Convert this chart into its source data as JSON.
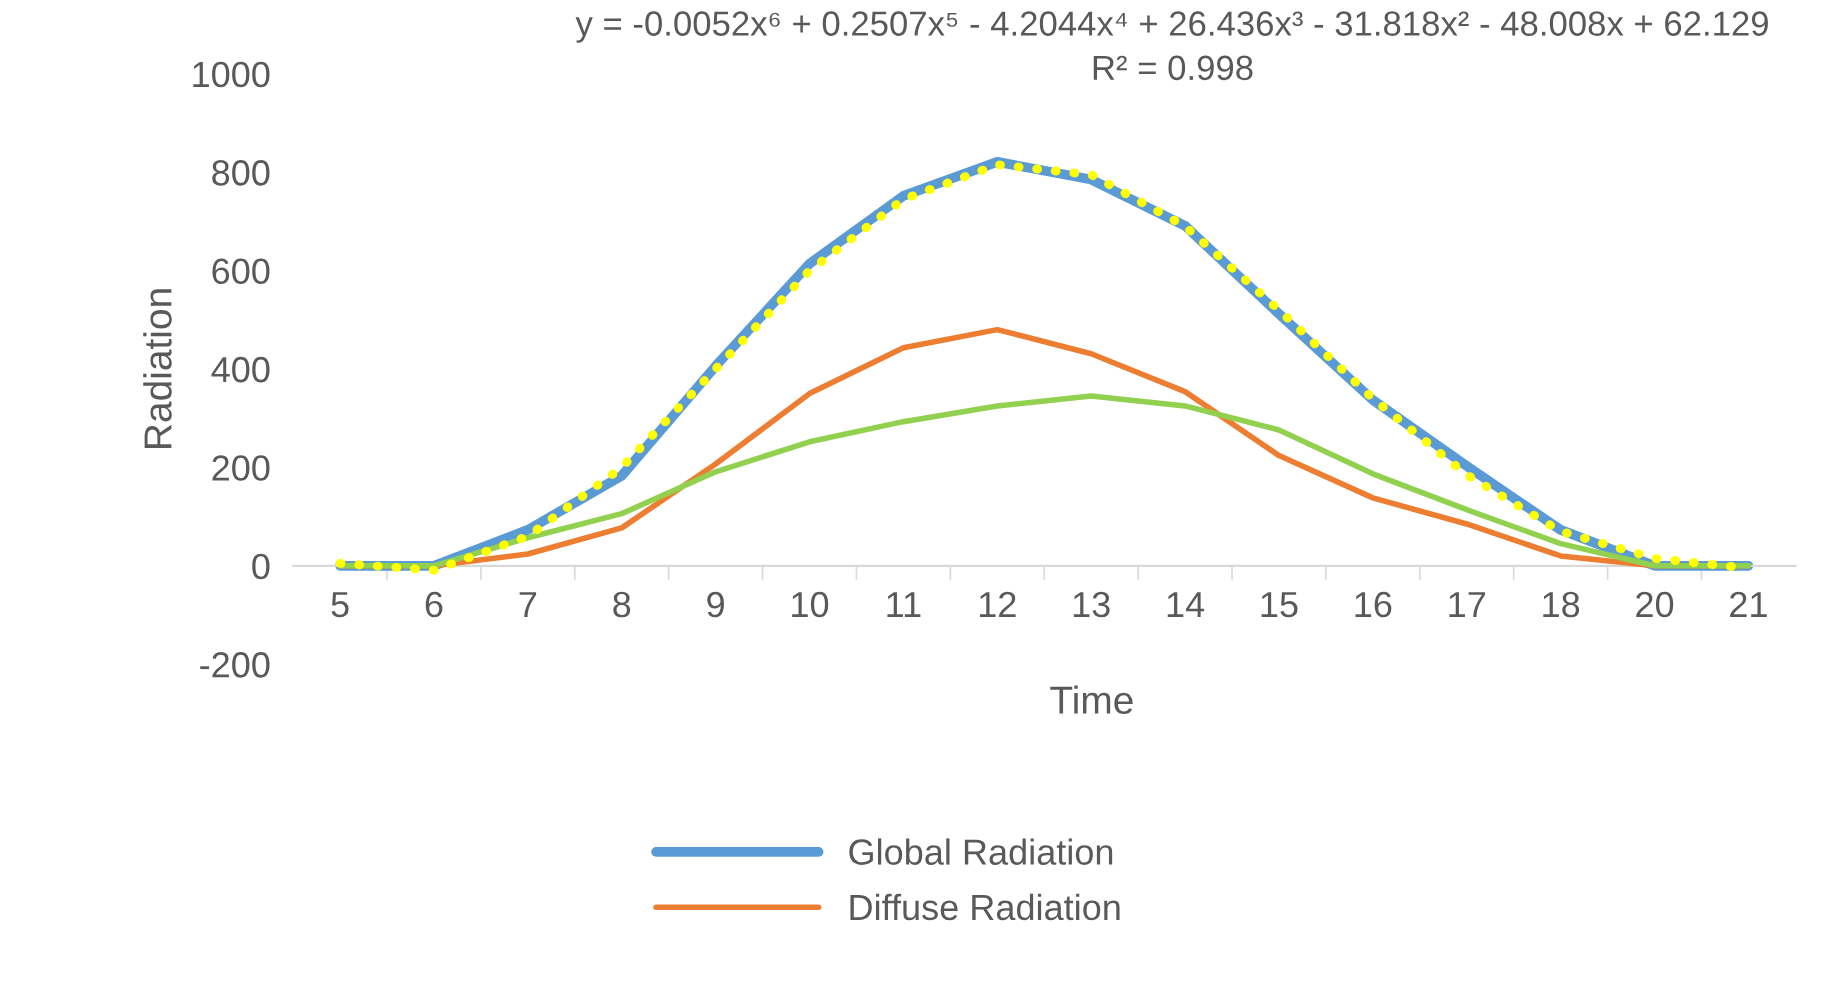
{
  "chart_data": {
    "type": "line",
    "xlabel": "Time",
    "ylabel": "Radiation",
    "categories": [
      "5",
      "6",
      "7",
      "8",
      "9",
      "10",
      "11",
      "12",
      "13",
      "14",
      "15",
      "16",
      "17",
      "18",
      "20",
      "21"
    ],
    "series": [
      {
        "name": "Global Radiation",
        "color": "#5b9bd5",
        "values": [
          0,
          0,
          73,
          183,
          406,
          614,
          752,
          821,
          785,
          691,
          512,
          337,
          203,
          73,
          0,
          0
        ]
      },
      {
        "name": "Diffuse Radiation",
        "color": "#ed7d31",
        "values": [
          0,
          0,
          24,
          77,
          207,
          350,
          443,
          480,
          431,
          354,
          224,
          138,
          85,
          20,
          0,
          0
        ]
      },
      {
        "color": "#92d050",
        "values": [
          0,
          0,
          57,
          106,
          191,
          252,
          293,
          325,
          345,
          325,
          276,
          187,
          114,
          45,
          0,
          0
        ]
      },
      {
        "color": "#ffff00",
        "line_style": "dotted",
        "values": [
          5,
          -9,
          60,
          200,
          400,
          600,
          745,
          815,
          795,
          690,
          520,
          340,
          185,
          70,
          15,
          -5
        ]
      }
    ],
    "ylim": [
      -200,
      1000
    ],
    "yticks": [
      -200,
      0,
      200,
      400,
      600,
      800,
      1000
    ],
    "annotations": [
      "y = -0.0052x⁶ + 0.2507x⁵ - 4.2044x⁴ + 26.436x³ - 31.818x² - 48.008x + 62.129",
      "R² = 0.998"
    ],
    "grid": false,
    "legend": "bottom",
    "marker": "none",
    "line_style": "solid"
  }
}
